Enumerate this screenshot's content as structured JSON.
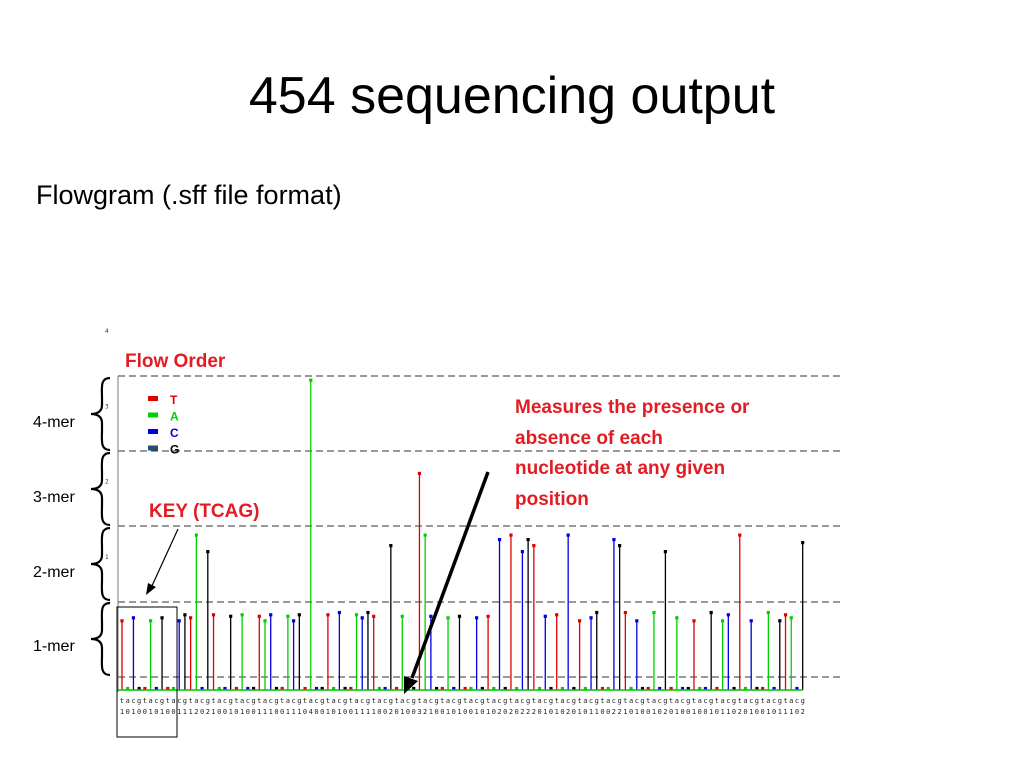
{
  "slide": {
    "title": "454 sequencing output",
    "subtitle": "Flowgram (.sff file format)"
  },
  "annotations": {
    "flow_order": "Flow Order",
    "key": "KEY (TCAG)",
    "measures": [
      "Measures the presence or",
      "absence of each",
      "nucleotide at any given",
      "position"
    ]
  },
  "mer_labels": [
    "4-mer",
    "3-mer",
    "2-mer",
    "1-mer"
  ],
  "chart_data": {
    "type": "bar",
    "flow_order": [
      "t",
      "a",
      "c",
      "g"
    ],
    "legend": [
      {
        "name": "T",
        "color": "#e00000"
      },
      {
        "name": "A",
        "color": "#00d000"
      },
      {
        "name": "C",
        "color": "#0000e0"
      },
      {
        "name": "G",
        "color": "#000000"
      }
    ],
    "ylim": [
      0,
      4
    ],
    "y_ticks": [
      "1",
      "2",
      "3",
      "4"
    ],
    "values": [
      1,
      0,
      1,
      0,
      0,
      1,
      0,
      1,
      0,
      0,
      1,
      1,
      1,
      2,
      0,
      2,
      1,
      0,
      0,
      1,
      0,
      1,
      0,
      0,
      1,
      1,
      1,
      0,
      0,
      1,
      1,
      1,
      0,
      4,
      0,
      0,
      1,
      0,
      1,
      0,
      0,
      1,
      1,
      1,
      1,
      0,
      0,
      2,
      0,
      1,
      0,
      0,
      3,
      2,
      1,
      0,
      0,
      1,
      0,
      1,
      0,
      0,
      1,
      0,
      1,
      0,
      2,
      0,
      2,
      0,
      2,
      2,
      2,
      0,
      1,
      0,
      1,
      0,
      2,
      0,
      1,
      0,
      1,
      1,
      0,
      0,
      2,
      2,
      1,
      0,
      1,
      0,
      0,
      1,
      0,
      2,
      0,
      1,
      0,
      0,
      1,
      0,
      0,
      1,
      0,
      1,
      1,
      0,
      2,
      0,
      1,
      0,
      0,
      1,
      0,
      1,
      1,
      1,
      0,
      2
    ],
    "tick_labels": [
      "1",
      "0",
      "1",
      "0",
      "0",
      "1",
      "0",
      "1",
      "0",
      "0",
      "1",
      "1",
      "1",
      "2",
      "0",
      "2",
      "1",
      "0",
      "0",
      "1",
      "0",
      "1",
      "0",
      "0",
      "1",
      "1",
      "1",
      "0",
      "0",
      "1",
      "1",
      "1",
      "0",
      "4",
      "0",
      "0",
      "1",
      "0",
      "1",
      "0",
      "0",
      "1",
      "1",
      "1",
      "1",
      "0",
      "0",
      "2",
      "0",
      "1",
      "0",
      "0",
      "3",
      "2",
      "1",
      "0",
      "0",
      "1",
      "0",
      "1",
      "0",
      "0",
      "1",
      "0",
      "1",
      "0",
      "2",
      "0",
      "2",
      "0",
      "2",
      "2",
      "2",
      "0",
      "1",
      "0",
      "1",
      "0",
      "2",
      "0",
      "1",
      "0",
      "1",
      "1",
      "0",
      "0",
      "2",
      "2",
      "1",
      "0",
      "1",
      "0",
      "0",
      "1",
      "0",
      "2",
      "0",
      "1",
      "0",
      "0",
      "1",
      "0",
      "0",
      "1",
      "0",
      "1",
      "1",
      "0",
      "2",
      "0",
      "1",
      "0",
      "0",
      "1",
      "0",
      "1",
      "1",
      "1",
      "0",
      "2"
    ]
  }
}
